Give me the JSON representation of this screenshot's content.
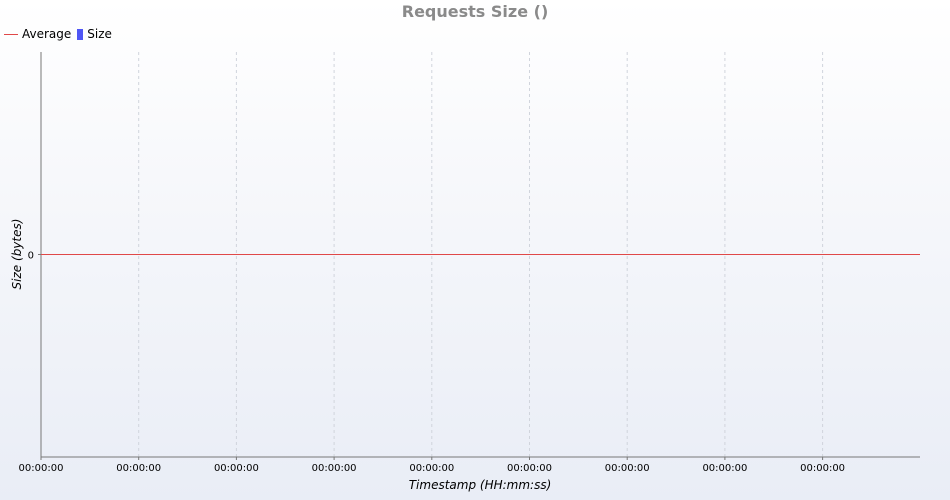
{
  "chart_data": {
    "type": "line",
    "title": "Requests Size ()",
    "xlabel": "Timestamp (HH:mm:ss)",
    "ylabel": "Size (bytes)",
    "x_tick_labels": [
      "00:00:00",
      "00:00:00",
      "00:00:00",
      "00:00:00",
      "00:00:00",
      "00:00:00",
      "00:00:00",
      "00:00:00",
      "00:00:00"
    ],
    "y_tick_labels": [
      "0"
    ],
    "y_ticks": [
      0
    ],
    "ylim": [
      -1,
      1
    ],
    "grid": true,
    "legend_position": "top-left",
    "series": [
      {
        "name": "Average",
        "kind": "line",
        "color": "#e04848",
        "values": [
          0,
          0,
          0,
          0,
          0,
          0,
          0,
          0,
          0
        ]
      },
      {
        "name": "Size",
        "kind": "bar",
        "color": "#4f56f5",
        "values": []
      }
    ]
  }
}
